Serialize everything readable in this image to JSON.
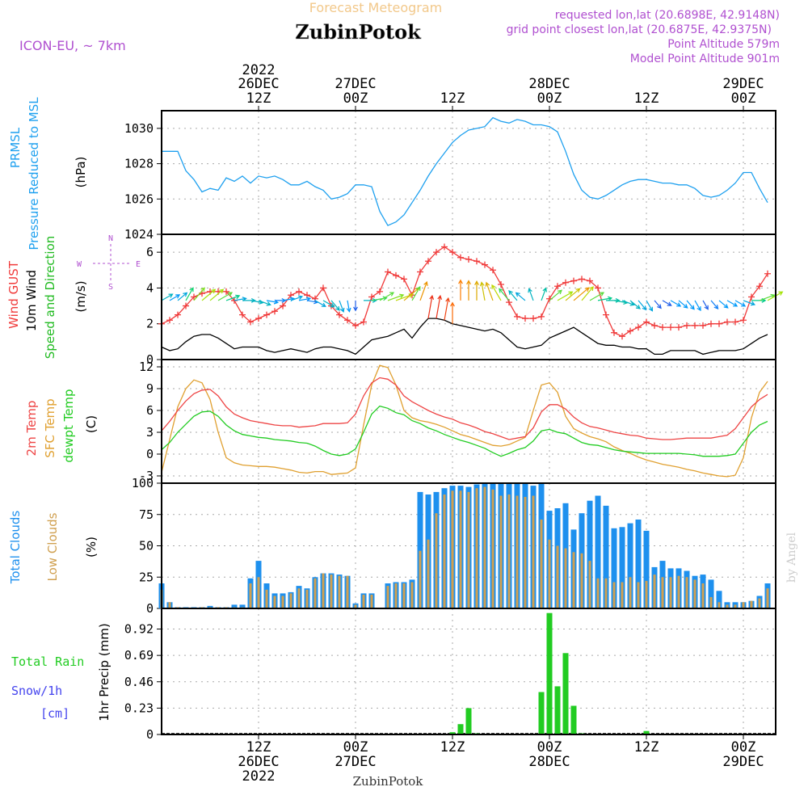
{
  "header": {
    "top_title": "Forecast Meteogram",
    "station": "ZubinPotok",
    "model": "ICON-EU, ~ 7km",
    "requested": "requested lon,lat (20.6898E, 42.9148N)",
    "closest": "grid point closest lon,lat (20.6875E, 42.9375N)",
    "point_alt": "Point Altitude 579m",
    "model_alt": "Model Point Altitude 901m",
    "watermark": "by Angel",
    "footer_station": "ZubinPotok"
  },
  "colors": {
    "pressure": "#1ea0ef",
    "gust": "#f03a3a",
    "wind": "#000000",
    "direction_label": "#22bb22",
    "temp2m": "#ee4444",
    "sfc": "#e0a030",
    "dewpt": "#22cc22",
    "total_clouds": "#1e90ee",
    "low_clouds": "#d0a050",
    "rain": "#22cc22",
    "snow": "#4444ee",
    "compass": "#b050d0",
    "header_purple": "#b050d0",
    "header_orange": "#f2c88a"
  },
  "time_axis": {
    "top_labels": [
      {
        "year": "2022",
        "date": "26DEC",
        "hour": "12Z"
      },
      {
        "year": "",
        "date": "27DEC",
        "hour": "00Z"
      },
      {
        "year": "",
        "date": "",
        "hour": "12Z"
      },
      {
        "year": "",
        "date": "28DEC",
        "hour": "00Z"
      },
      {
        "year": "",
        "date": "",
        "hour": "12Z"
      },
      {
        "year": "",
        "date": "29DEC",
        "hour": "00Z"
      }
    ],
    "bottom_labels": [
      {
        "hour": "12Z",
        "date": "26DEC",
        "year": "2022"
      },
      {
        "hour": "00Z",
        "date": "27DEC",
        "year": ""
      },
      {
        "hour": "12Z",
        "date": "",
        "year": ""
      },
      {
        "hour": "00Z",
        "date": "28DEC",
        "year": ""
      },
      {
        "hour": "12Z",
        "date": "",
        "year": ""
      },
      {
        "hour": "00Z",
        "date": "29DEC",
        "year": ""
      }
    ]
  },
  "panels": {
    "pressure": {
      "label1": "PRMSL",
      "label2": "Pressure Reduced to MSL",
      "unit": "(hPa)",
      "ticks": [
        "1024",
        "1026",
        "1028",
        "1030"
      ]
    },
    "wind": {
      "gust_label": "Wind GUST",
      "wind_label": "10m Wind",
      "dir_label": "Speed and Direction",
      "unit": "(m/s)",
      "ticks": [
        "0",
        "2",
        "4",
        "6"
      ],
      "compass": {
        "n": "N",
        "s": "S",
        "w": "W",
        "e": "E"
      }
    },
    "temp": {
      "t2m_label": "2m Temp",
      "sfc_label": "SFC Temp",
      "dew_label": "dewpt Temp",
      "unit": "(C)",
      "ticks": [
        "-3",
        "0",
        "3",
        "6",
        "9",
        "12"
      ]
    },
    "clouds": {
      "total_label": "Total Clouds",
      "low_label": "Low Clouds",
      "unit": "(%)",
      "ticks": [
        "0",
        "25",
        "50",
        "75",
        "100"
      ]
    },
    "precip": {
      "rain_label": "Total  Rain",
      "snow_label": "Snow/1h",
      "snow_unit": "[cm]",
      "axis_label": "1hr Precip (mm)",
      "ticks": [
        "0",
        "0.23",
        "0.46",
        "0.69",
        "0.92"
      ]
    }
  },
  "chart_data": [
    {
      "type": "line",
      "name": "PRMSL",
      "x_hours_from_26DEC00Z": [
        0,
        1,
        2,
        3,
        4,
        5,
        6,
        7,
        8,
        9,
        10,
        11,
        12,
        13,
        14,
        15,
        16,
        17,
        18,
        19,
        20,
        21,
        22,
        23,
        24,
        25,
        26,
        27,
        28,
        29,
        30,
        31,
        32,
        33,
        34,
        35,
        36,
        37,
        38,
        39,
        40,
        41,
        42,
        43,
        44,
        45,
        46,
        47,
        48,
        49,
        50,
        51,
        52,
        53,
        54,
        55,
        56,
        57,
        58,
        59,
        60,
        61,
        62,
        63,
        64,
        65,
        66,
        67,
        68,
        69,
        70,
        71,
        72,
        73,
        74,
        75
      ],
      "values": [
        1028.7,
        1028.7,
        1028.7,
        1027.6,
        1027.1,
        1026.4,
        1026.6,
        1026.5,
        1027.2,
        1027.0,
        1027.3,
        1026.9,
        1027.3,
        1027.2,
        1027.3,
        1027.1,
        1026.8,
        1026.8,
        1027.0,
        1026.7,
        1026.5,
        1026.0,
        1026.1,
        1026.3,
        1026.8,
        1026.8,
        1026.7,
        1025.3,
        1024.5,
        1024.7,
        1025.1,
        1025.8,
        1026.5,
        1027.3,
        1028.0,
        1028.6,
        1029.2,
        1029.6,
        1029.9,
        1030.0,
        1030.1,
        1030.6,
        1030.4,
        1030.3,
        1030.5,
        1030.4,
        1030.2,
        1030.2,
        1030.1,
        1029.8,
        1028.7,
        1027.4,
        1026.5,
        1026.1,
        1026.0,
        1026.2,
        1026.5,
        1026.8,
        1027.0,
        1027.1,
        1027.1,
        1027.0,
        1026.9,
        1026.9,
        1026.8,
        1026.8,
        1026.6,
        1026.2,
        1026.1,
        1026.2,
        1026.5,
        1026.9,
        1027.5,
        1027.5,
        1026.6,
        1025.8
      ],
      "ylabel": "(hPa)",
      "ylim": [
        1024,
        1031
      ]
    },
    {
      "type": "line",
      "name": "wind",
      "x_hours_from_26DEC00Z": [
        0,
        1,
        2,
        3,
        4,
        5,
        6,
        7,
        8,
        9,
        10,
        11,
        12,
        13,
        14,
        15,
        16,
        17,
        18,
        19,
        20,
        21,
        22,
        23,
        24,
        25,
        26,
        27,
        28,
        29,
        30,
        31,
        32,
        33,
        34,
        35,
        36,
        37,
        38,
        39,
        40,
        41,
        42,
        43,
        44,
        45,
        46,
        47,
        48,
        49,
        50,
        51,
        52,
        53,
        54,
        55,
        56,
        57,
        58,
        59,
        60,
        61,
        62,
        63,
        64,
        65,
        66,
        67,
        68,
        69,
        70,
        71,
        72,
        73,
        74,
        75
      ],
      "gust": [
        2.0,
        2.2,
        2.5,
        3.0,
        3.5,
        3.7,
        3.8,
        3.8,
        3.8,
        3.3,
        2.5,
        2.1,
        2.3,
        2.5,
        2.7,
        3.0,
        3.6,
        3.8,
        3.6,
        3.4,
        4.0,
        3.0,
        2.5,
        2.2,
        1.9,
        2.1,
        3.5,
        3.8,
        4.9,
        4.7,
        4.5,
        3.6,
        4.9,
        5.5,
        6.0,
        6.3,
        6.0,
        5.7,
        5.6,
        5.5,
        5.3,
        5.0,
        4.2,
        3.2,
        2.4,
        2.3,
        2.3,
        2.4,
        3.4,
        4.1,
        4.3,
        4.4,
        4.5,
        4.4,
        4.0,
        2.5,
        1.5,
        1.3,
        1.6,
        1.8,
        2.1,
        1.9,
        1.8,
        1.8,
        1.8,
        1.9,
        1.9,
        1.9,
        2.0,
        2.0,
        2.1,
        2.1,
        2.2,
        3.5,
        4.1,
        4.8
      ],
      "wind": [
        0.7,
        0.5,
        0.6,
        1.0,
        1.3,
        1.4,
        1.4,
        1.2,
        0.9,
        0.6,
        0.7,
        0.7,
        0.7,
        0.5,
        0.4,
        0.5,
        0.6,
        0.5,
        0.4,
        0.6,
        0.7,
        0.7,
        0.6,
        0.5,
        0.3,
        0.7,
        1.1,
        1.2,
        1.3,
        1.5,
        1.7,
        1.2,
        1.8,
        2.3,
        2.3,
        2.2,
        2.0,
        1.9,
        1.8,
        1.7,
        1.6,
        1.7,
        1.5,
        1.1,
        0.7,
        0.6,
        0.7,
        0.8,
        1.2,
        1.4,
        1.6,
        1.8,
        1.5,
        1.2,
        0.9,
        0.8,
        0.8,
        0.7,
        0.7,
        0.6,
        0.6,
        0.3,
        0.3,
        0.5,
        0.5,
        0.5,
        0.5,
        0.3,
        0.4,
        0.5,
        0.5,
        0.5,
        0.6,
        0.9,
        1.2,
        1.4
      ],
      "direction_from_deg": [
        240,
        240,
        230,
        210,
        220,
        230,
        230,
        240,
        250,
        260,
        270,
        280,
        290,
        280,
        270,
        260,
        250,
        260,
        280,
        300,
        300,
        320,
        340,
        350,
        360,
        270,
        260,
        240,
        250,
        250,
        230,
        210,
        200,
        190,
        190,
        190,
        180,
        180,
        180,
        180,
        170,
        160,
        150,
        140,
        140,
        130,
        160,
        200,
        230,
        240,
        230,
        230,
        220,
        240,
        260,
        270,
        280,
        290,
        310,
        320,
        330,
        320,
        300,
        300,
        310,
        320,
        330,
        330,
        320,
        310,
        300,
        300,
        290,
        270,
        250,
        240
      ],
      "ylabel": "(m/s)",
      "ylim": [
        0,
        7
      ]
    },
    {
      "type": "line",
      "name": "temperature",
      "x_hours_from_26DEC00Z": [
        0,
        1,
        2,
        3,
        4,
        5,
        6,
        7,
        8,
        9,
        10,
        11,
        12,
        13,
        14,
        15,
        16,
        17,
        18,
        19,
        20,
        21,
        22,
        23,
        24,
        25,
        26,
        27,
        28,
        29,
        30,
        31,
        32,
        33,
        34,
        35,
        36,
        37,
        38,
        39,
        40,
        41,
        42,
        43,
        44,
        45,
        46,
        47,
        48,
        49,
        50,
        51,
        52,
        53,
        54,
        55,
        56,
        57,
        58,
        59,
        60,
        61,
        62,
        63,
        64,
        65,
        66,
        67,
        68,
        69,
        70,
        71,
        72,
        73,
        74,
        75
      ],
      "t2m": [
        3.2,
        4.5,
        6.0,
        7.3,
        8.3,
        8.8,
        8.9,
        8.0,
        6.5,
        5.5,
        5.0,
        4.6,
        4.4,
        4.2,
        4.0,
        3.9,
        3.9,
        3.7,
        3.8,
        3.9,
        4.2,
        4.2,
        4.2,
        4.3,
        5.5,
        8.0,
        9.8,
        10.5,
        10.3,
        9.5,
        8.0,
        7.2,
        6.6,
        6.0,
        5.5,
        5.1,
        4.8,
        4.3,
        4.0,
        3.6,
        3.1,
        2.8,
        2.4,
        2.0,
        2.2,
        2.4,
        3.6,
        5.8,
        6.8,
        6.8,
        6.2,
        5.1,
        4.3,
        3.8,
        3.6,
        3.3,
        3.0,
        2.8,
        2.6,
        2.5,
        2.2,
        2.1,
        2.0,
        2.0,
        2.1,
        2.2,
        2.2,
        2.2,
        2.2,
        2.4,
        2.6,
        3.5,
        5.0,
        6.5,
        7.5,
        8.2
      ],
      "sfc": [
        -2.5,
        2.0,
        6.5,
        9.0,
        10.2,
        9.8,
        7.5,
        3.0,
        -0.5,
        -1.2,
        -1.5,
        -1.6,
        -1.7,
        -1.7,
        -1.8,
        -2.0,
        -2.2,
        -2.5,
        -2.6,
        -2.4,
        -2.4,
        -2.8,
        -2.7,
        -2.6,
        -1.9,
        4.0,
        9.5,
        12.2,
        11.9,
        9.5,
        6.0,
        5.0,
        4.6,
        4.4,
        4.1,
        3.7,
        3.2,
        2.7,
        2.4,
        2.0,
        1.6,
        1.2,
        1.1,
        1.3,
        1.8,
        2.3,
        6.0,
        9.5,
        9.8,
        8.5,
        5.2,
        3.5,
        2.9,
        2.4,
        2.1,
        1.7,
        1.0,
        0.5,
        0.1,
        -0.4,
        -0.8,
        -1.1,
        -1.4,
        -1.6,
        -1.8,
        -2.1,
        -2.3,
        -2.6,
        -2.8,
        -3.0,
        -3.1,
        -2.9,
        -0.5,
        5.0,
        8.5,
        10.0
      ],
      "dewpt": [
        0.6,
        1.6,
        3.0,
        4.1,
        5.2,
        5.8,
        5.9,
        5.2,
        4.0,
        3.2,
        2.7,
        2.5,
        2.3,
        2.2,
        2.0,
        1.9,
        1.8,
        1.6,
        1.5,
        1.1,
        0.5,
        0.0,
        -0.2,
        0.0,
        0.7,
        3.0,
        5.5,
        6.6,
        6.3,
        5.7,
        5.4,
        4.6,
        4.2,
        3.6,
        3.2,
        2.7,
        2.3,
        1.9,
        1.6,
        1.2,
        0.8,
        0.2,
        -0.3,
        0.1,
        0.6,
        0.9,
        1.8,
        3.2,
        3.4,
        3.0,
        2.8,
        2.2,
        1.6,
        1.3,
        1.2,
        0.9,
        0.6,
        0.4,
        0.3,
        0.2,
        0.1,
        0.1,
        0.1,
        0.1,
        0.1,
        0.0,
        -0.1,
        -0.3,
        -0.3,
        -0.3,
        -0.2,
        0.0,
        1.5,
        3.0,
        4.0,
        4.5
      ],
      "ylabel": "(C)",
      "ylim": [
        -4,
        13
      ]
    },
    {
      "type": "bar",
      "name": "clouds",
      "x_hours_from_26DEC00Z": [
        0,
        1,
        2,
        3,
        4,
        5,
        6,
        7,
        8,
        9,
        10,
        11,
        12,
        13,
        14,
        15,
        16,
        17,
        18,
        19,
        20,
        21,
        22,
        23,
        24,
        25,
        26,
        27,
        28,
        29,
        30,
        31,
        32,
        33,
        34,
        35,
        36,
        37,
        38,
        39,
        40,
        41,
        42,
        43,
        44,
        45,
        46,
        47,
        48,
        49,
        50,
        51,
        52,
        53,
        54,
        55,
        56,
        57,
        58,
        59,
        60,
        61,
        62,
        63,
        64,
        65,
        66,
        67,
        68,
        69,
        70,
        71,
        72,
        73,
        74,
        75
      ],
      "total_clouds": [
        20,
        5,
        1,
        1,
        1,
        1,
        2,
        1,
        1,
        3,
        3,
        24,
        38,
        20,
        12,
        12,
        13,
        18,
        16,
        25,
        28,
        28,
        27,
        26,
        4,
        12,
        12,
        0,
        20,
        21,
        21,
        23,
        93,
        91,
        93,
        96,
        98,
        98,
        97,
        99,
        100,
        100,
        100,
        100,
        100,
        100,
        98,
        100,
        78,
        80,
        84,
        63,
        76,
        86,
        90,
        82,
        64,
        65,
        68,
        71,
        62,
        33,
        38,
        32,
        32,
        30,
        26,
        27,
        23,
        14,
        5,
        5,
        5,
        6,
        10,
        20
      ],
      "low_clouds": [
        15,
        5,
        1,
        0,
        0,
        1,
        1,
        1,
        1,
        1,
        1,
        20,
        25,
        15,
        10,
        10,
        12,
        16,
        15,
        24,
        28,
        27,
        26,
        26,
        3,
        11,
        11,
        0,
        18,
        20,
        20,
        21,
        46,
        55,
        76,
        91,
        94,
        94,
        93,
        96,
        97,
        95,
        90,
        91,
        90,
        89,
        90,
        71,
        55,
        50,
        48,
        45,
        44,
        38,
        24,
        24,
        21,
        21,
        25,
        21,
        22,
        27,
        25,
        25,
        26,
        25,
        23,
        20,
        9,
        5,
        3,
        3,
        5,
        6,
        8,
        16
      ],
      "ylabel": "(%)",
      "ylim": [
        0,
        100
      ]
    },
    {
      "type": "bar",
      "name": "precip",
      "x_hours_from_26DEC00Z": [
        36,
        37,
        38,
        39,
        47,
        48,
        49,
        50,
        51,
        52,
        53,
        60
      ],
      "values": [
        0.02,
        0.09,
        0.23,
        0.01,
        0.37,
        1.06,
        0.42,
        0.71,
        0.25,
        0.01,
        0.0,
        0.03
      ],
      "ylabel": "1hr Precip (mm)",
      "ylim": [
        0,
        1.1
      ]
    }
  ]
}
